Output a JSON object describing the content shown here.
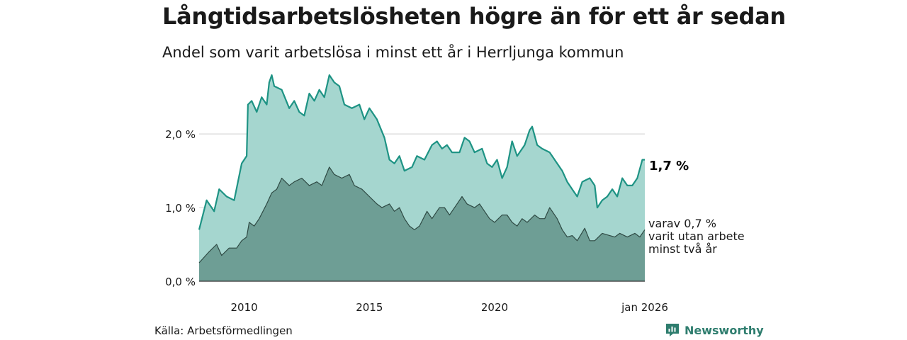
{
  "header": {
    "title": "Långtidsarbetslösheten högre än för ett år sedan",
    "subtitle": "Andel som varit arbetslösa i minst ett år i Herrljunga kommun"
  },
  "footer": {
    "source": "Källa: Arbetsförmedlingen",
    "brand": "Newsworthy"
  },
  "colors": {
    "upper_fill": "#a5d6cf",
    "upper_line": "#1e9384",
    "lower_fill": "#6e9e95",
    "lower_line": "#2f4a44",
    "grid": "#d9d9d9"
  },
  "chart_data": {
    "type": "area",
    "title": "Långtidsarbetslösheten högre än för ett år sedan",
    "subtitle": "Andel som varit arbetslösa i minst ett år i Herrljunga kommun",
    "xlabel": "",
    "ylabel": "",
    "xlim": [
      2008.2,
      2026.0
    ],
    "ylim": [
      0,
      2.8
    ],
    "y_ticks": [
      {
        "value": 0,
        "label": "0,0 %"
      },
      {
        "value": 1,
        "label": "1,0 %"
      },
      {
        "value": 2,
        "label": "2,0 %"
      }
    ],
    "x_ticks": [
      {
        "value": 2010,
        "label": "2010"
      },
      {
        "value": 2015,
        "label": "2015"
      },
      {
        "value": 2020,
        "label": "2020"
      },
      {
        "value": 2026,
        "label": "jan 2026"
      }
    ],
    "grid": true,
    "series": [
      {
        "name": "Minst ett år",
        "end_label": "1,7 %",
        "points": [
          [
            2008.2,
            0.7
          ],
          [
            2008.5,
            1.1
          ],
          [
            2008.8,
            0.95
          ],
          [
            2009.0,
            1.25
          ],
          [
            2009.3,
            1.15
          ],
          [
            2009.6,
            1.1
          ],
          [
            2009.9,
            1.6
          ],
          [
            2010.1,
            1.7
          ],
          [
            2010.15,
            2.4
          ],
          [
            2010.3,
            2.45
          ],
          [
            2010.5,
            2.3
          ],
          [
            2010.7,
            2.5
          ],
          [
            2010.9,
            2.4
          ],
          [
            2011.0,
            2.7
          ],
          [
            2011.1,
            2.8
          ],
          [
            2011.2,
            2.65
          ],
          [
            2011.5,
            2.6
          ],
          [
            2011.8,
            2.35
          ],
          [
            2012.0,
            2.45
          ],
          [
            2012.2,
            2.3
          ],
          [
            2012.4,
            2.25
          ],
          [
            2012.6,
            2.55
          ],
          [
            2012.8,
            2.45
          ],
          [
            2013.0,
            2.6
          ],
          [
            2013.2,
            2.5
          ],
          [
            2013.4,
            2.8
          ],
          [
            2013.6,
            2.7
          ],
          [
            2013.8,
            2.65
          ],
          [
            2014.0,
            2.4
          ],
          [
            2014.3,
            2.35
          ],
          [
            2014.6,
            2.4
          ],
          [
            2014.8,
            2.2
          ],
          [
            2015.0,
            2.35
          ],
          [
            2015.3,
            2.2
          ],
          [
            2015.6,
            1.95
          ],
          [
            2015.8,
            1.65
          ],
          [
            2016.0,
            1.6
          ],
          [
            2016.2,
            1.7
          ],
          [
            2016.4,
            1.5
          ],
          [
            2016.7,
            1.55
          ],
          [
            2016.9,
            1.7
          ],
          [
            2017.2,
            1.65
          ],
          [
            2017.5,
            1.85
          ],
          [
            2017.7,
            1.9
          ],
          [
            2017.9,
            1.8
          ],
          [
            2018.1,
            1.85
          ],
          [
            2018.3,
            1.75
          ],
          [
            2018.6,
            1.75
          ],
          [
            2018.8,
            1.95
          ],
          [
            2019.0,
            1.9
          ],
          [
            2019.2,
            1.75
          ],
          [
            2019.5,
            1.8
          ],
          [
            2019.7,
            1.6
          ],
          [
            2019.9,
            1.55
          ],
          [
            2020.1,
            1.65
          ],
          [
            2020.3,
            1.4
          ],
          [
            2020.5,
            1.55
          ],
          [
            2020.7,
            1.9
          ],
          [
            2020.9,
            1.7
          ],
          [
            2021.2,
            1.85
          ],
          [
            2021.4,
            2.05
          ],
          [
            2021.5,
            2.1
          ],
          [
            2021.7,
            1.85
          ],
          [
            2021.9,
            1.8
          ],
          [
            2022.2,
            1.75
          ],
          [
            2022.5,
            1.6
          ],
          [
            2022.7,
            1.5
          ],
          [
            2022.9,
            1.35
          ],
          [
            2023.1,
            1.25
          ],
          [
            2023.3,
            1.15
          ],
          [
            2023.5,
            1.35
          ],
          [
            2023.8,
            1.4
          ],
          [
            2024.0,
            1.3
          ],
          [
            2024.1,
            1.0
          ],
          [
            2024.3,
            1.1
          ],
          [
            2024.5,
            1.15
          ],
          [
            2024.7,
            1.25
          ],
          [
            2024.9,
            1.15
          ],
          [
            2025.1,
            1.4
          ],
          [
            2025.3,
            1.3
          ],
          [
            2025.5,
            1.3
          ],
          [
            2025.7,
            1.4
          ],
          [
            2025.9,
            1.65
          ],
          [
            2026.0,
            1.65
          ]
        ]
      },
      {
        "name": "varav minst två år",
        "end_label": "varav 0,7 %\nvarit utan arbete\nminst två år",
        "points": [
          [
            2008.2,
            0.25
          ],
          [
            2008.6,
            0.4
          ],
          [
            2008.9,
            0.5
          ],
          [
            2009.1,
            0.35
          ],
          [
            2009.4,
            0.45
          ],
          [
            2009.7,
            0.45
          ],
          [
            2009.9,
            0.55
          ],
          [
            2010.1,
            0.6
          ],
          [
            2010.2,
            0.8
          ],
          [
            2010.4,
            0.75
          ],
          [
            2010.6,
            0.85
          ],
          [
            2010.9,
            1.05
          ],
          [
            2011.1,
            1.2
          ],
          [
            2011.3,
            1.25
          ],
          [
            2011.5,
            1.4
          ],
          [
            2011.8,
            1.3
          ],
          [
            2012.0,
            1.35
          ],
          [
            2012.3,
            1.4
          ],
          [
            2012.6,
            1.3
          ],
          [
            2012.9,
            1.35
          ],
          [
            2013.1,
            1.3
          ],
          [
            2013.4,
            1.55
          ],
          [
            2013.6,
            1.45
          ],
          [
            2013.9,
            1.4
          ],
          [
            2014.2,
            1.45
          ],
          [
            2014.4,
            1.3
          ],
          [
            2014.7,
            1.25
          ],
          [
            2015.0,
            1.15
          ],
          [
            2015.3,
            1.05
          ],
          [
            2015.5,
            1.0
          ],
          [
            2015.8,
            1.05
          ],
          [
            2016.0,
            0.95
          ],
          [
            2016.2,
            1.0
          ],
          [
            2016.4,
            0.85
          ],
          [
            2016.6,
            0.75
          ],
          [
            2016.8,
            0.7
          ],
          [
            2017.0,
            0.75
          ],
          [
            2017.3,
            0.95
          ],
          [
            2017.5,
            0.85
          ],
          [
            2017.8,
            1.0
          ],
          [
            2018.0,
            1.0
          ],
          [
            2018.2,
            0.9
          ],
          [
            2018.5,
            1.05
          ],
          [
            2018.7,
            1.15
          ],
          [
            2018.9,
            1.05
          ],
          [
            2019.2,
            1.0
          ],
          [
            2019.4,
            1.05
          ],
          [
            2019.6,
            0.95
          ],
          [
            2019.8,
            0.85
          ],
          [
            2020.0,
            0.8
          ],
          [
            2020.3,
            0.9
          ],
          [
            2020.5,
            0.9
          ],
          [
            2020.7,
            0.8
          ],
          [
            2020.9,
            0.75
          ],
          [
            2021.1,
            0.85
          ],
          [
            2021.3,
            0.8
          ],
          [
            2021.6,
            0.9
          ],
          [
            2021.8,
            0.85
          ],
          [
            2022.0,
            0.85
          ],
          [
            2022.2,
            1.0
          ],
          [
            2022.5,
            0.85
          ],
          [
            2022.7,
            0.7
          ],
          [
            2022.9,
            0.6
          ],
          [
            2023.1,
            0.62
          ],
          [
            2023.3,
            0.55
          ],
          [
            2023.6,
            0.72
          ],
          [
            2023.8,
            0.55
          ],
          [
            2024.0,
            0.55
          ],
          [
            2024.3,
            0.65
          ],
          [
            2024.6,
            0.62
          ],
          [
            2024.8,
            0.6
          ],
          [
            2025.0,
            0.65
          ],
          [
            2025.3,
            0.6
          ],
          [
            2025.6,
            0.65
          ],
          [
            2025.8,
            0.6
          ],
          [
            2026.0,
            0.7
          ]
        ]
      }
    ]
  }
}
